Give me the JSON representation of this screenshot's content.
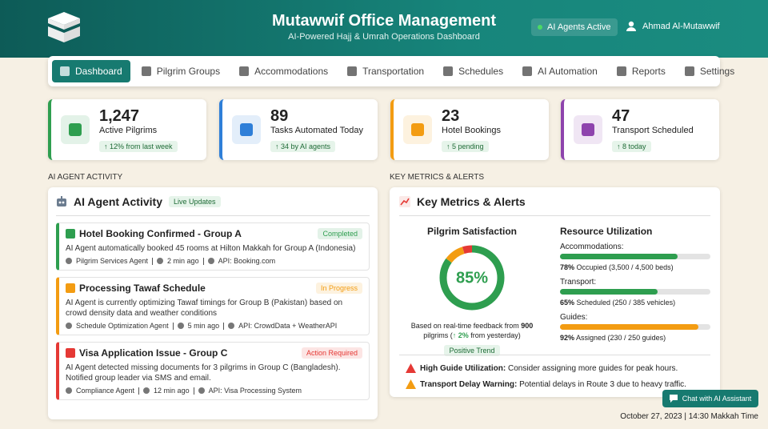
{
  "header": {
    "title": "Mutawwif Office Management",
    "subtitle": "AI-Powered Hajj & Umrah Operations Dashboard",
    "status": "AI Agents Active",
    "user": "Ahmad Al-Mutawwif"
  },
  "nav": {
    "active": 0,
    "items": [
      "Dashboard",
      "Pilgrim Groups",
      "Accommodations",
      "Transportation",
      "Schedules",
      "AI Automation",
      "Reports",
      "Settings"
    ]
  },
  "stats": [
    {
      "value": "1,247",
      "label": "Active Pilgrims",
      "change": "↑ 12% from last week",
      "color": "#2e9e4f"
    },
    {
      "value": "89",
      "label": "Tasks Automated Today",
      "change": "↑ 34 by AI agents",
      "color": "#2f7fd8"
    },
    {
      "value": "23",
      "label": "Hotel Bookings",
      "change": "↑ 5 pending",
      "color": "#f39c12"
    },
    {
      "value": "47",
      "label": "Transport Scheduled",
      "change": "↑ 8 today",
      "color": "#8e44ad"
    }
  ],
  "activity": {
    "section": "AI AGENT ACTIVITY",
    "title": "AI Agent Activity",
    "badge": "Live Updates",
    "items": [
      {
        "title": "Hotel Booking Confirmed - Group A",
        "status": "Completed",
        "color": "#2e9e4f",
        "text": "AI Agent automatically booked 45 rooms at Hilton Makkah for Group A (Indonesia)",
        "agent": "Pilgrim Services Agent",
        "time": "2 min ago",
        "api": "API: Booking.com"
      },
      {
        "title": "Processing Tawaf Schedule",
        "status": "In Progress",
        "color": "#f39c12",
        "text": "AI Agent is currently optimizing Tawaf timings for Group B (Pakistan) based on crowd density data and weather conditions",
        "agent": "Schedule Optimization Agent",
        "time": "5 min ago",
        "api": "API: CrowdData + WeatherAPI"
      },
      {
        "title": "Visa Application Issue - Group C",
        "status": "Action Required",
        "color": "#e53935",
        "text": "AI Agent detected missing documents for 3 pilgrims in Group C (Bangladesh). Notified group leader via SMS and email.",
        "agent": "Compliance Agent",
        "time": "12 min ago",
        "api": "API: Visa Processing System"
      }
    ]
  },
  "metrics": {
    "section": "KEY METRICS & ALERTS",
    "title": "Key Metrics & Alerts",
    "satisfaction": {
      "title": "Pilgrim Satisfaction",
      "label": "85%",
      "segments": [
        {
          "value": 85,
          "color": "#2e9e4f"
        },
        {
          "value": 10,
          "color": "#f39c12"
        },
        {
          "value": 5,
          "color": "#e53935"
        }
      ],
      "note": [
        "Based on real-time feedback from ",
        "900",
        " pilgrims (",
        "↑ 2%",
        " from yesterday)"
      ],
      "trend": "Positive Trend"
    },
    "resources": {
      "title": "Resource Utilization",
      "items": [
        {
          "name": "Accommodations:",
          "value": 78,
          "label": "78%",
          "detail": " Occupied (3,500 / 4,500 beds)",
          "color": "#2e9e4f"
        },
        {
          "name": "Transport:",
          "value": 65,
          "label": "65%",
          "detail": " Scheduled (250 / 385 vehicles)",
          "color": "#2e9e4f"
        },
        {
          "name": "Guides:",
          "value": 92,
          "label": "92%",
          "detail": " Assigned (230 / 250 guides)",
          "color": "#f39c12"
        }
      ]
    },
    "alerts": [
      {
        "title": "High Guide Utilization:",
        "text": " Consider assigning more guides for peak hours.",
        "color": "#e53935"
      },
      {
        "title": "Transport Delay Warning:",
        "text": " Potential delays in Route 3 due to heavy traffic.",
        "color": "#f39c12"
      }
    ]
  },
  "footer": {
    "chat": "Chat with AI Assistant",
    "datetime": "October 27, 2023 | 14:30 Makkah Time"
  }
}
